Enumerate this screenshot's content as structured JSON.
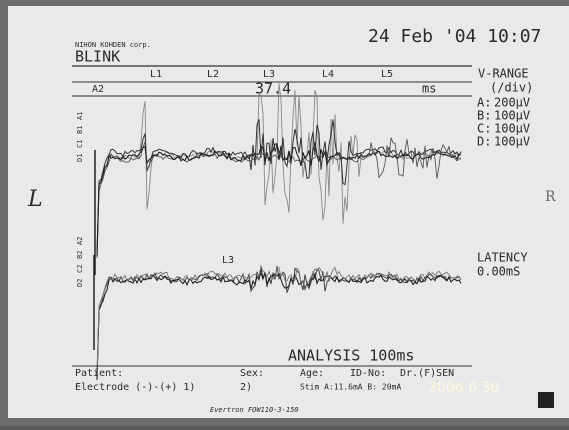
{
  "header": {
    "maker": "NIHON KOHDEN corp.",
    "mode": "BLINK",
    "datetime": "24 Feb '04 10:07"
  },
  "markers": [
    "L1",
    "L2",
    "L3",
    "L4",
    "L5"
  ],
  "cursor": {
    "channel": "A2",
    "value": "37.4",
    "unit": "ms"
  },
  "vrange": {
    "title": "V-RANGE",
    "unit": "(/div)",
    "channels": [
      {
        "name": "A:",
        "value": "200µV"
      },
      {
        "name": "B:",
        "value": "100µV"
      },
      {
        "name": "C:",
        "value": "100µV"
      },
      {
        "name": "D:",
        "value": "100µV"
      }
    ]
  },
  "upper_channels": [
    "A1",
    "B1",
    "C1",
    "D1"
  ],
  "lower_channels": [
    "A2",
    "B2",
    "C2",
    "D2"
  ],
  "lower_marker": "L3",
  "latency": {
    "title": "LATENCY",
    "value": "0.00mS"
  },
  "analysis": "ANALYSIS 100ms",
  "footer": {
    "patient": "Patient:",
    "sex": "Sex:",
    "age": "Age:",
    "id": "ID-No:",
    "doctor": "Dr.(F)SEN",
    "electrode": "Electrode (-)-(+) 1)",
    "electrode2": "2)",
    "stim": "Stim A:11.6mA B: 20mA",
    "brand": "Evertron  FOW110-3-150"
  },
  "handwriting": {
    "left": "L",
    "right": "R"
  },
  "photo_date": "2006  6 30"
}
